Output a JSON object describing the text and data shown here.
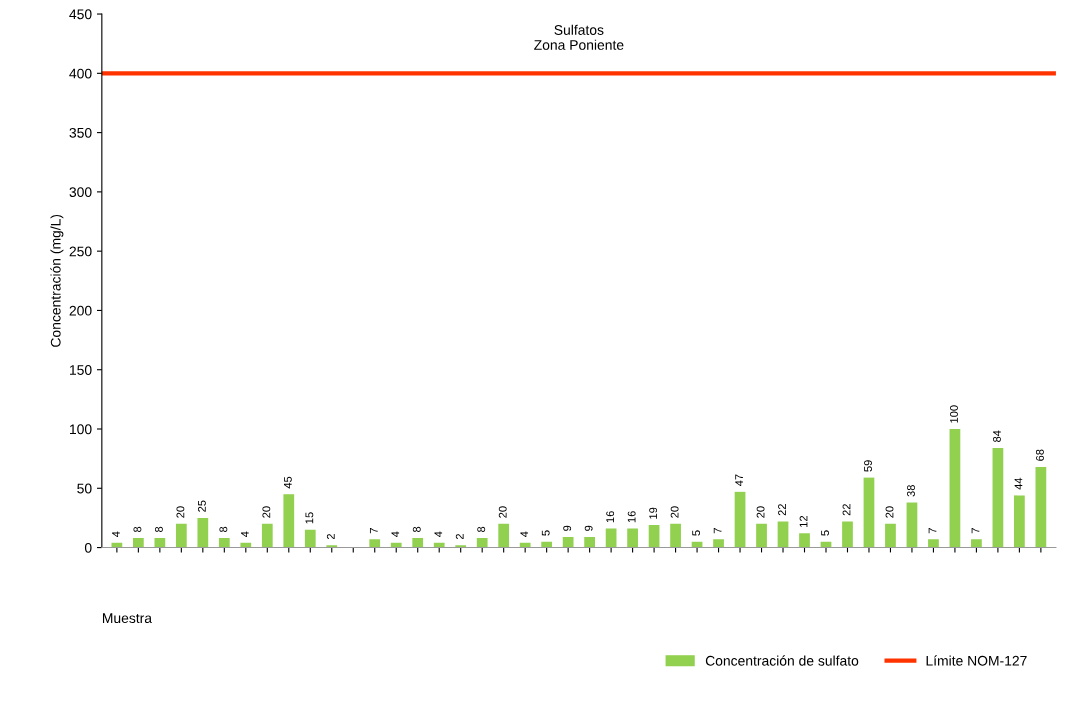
{
  "chart_data": {
    "type": "bar",
    "title": "Sulfatos",
    "subtitle": "Zona Poniente",
    "ylabel": "Concentración (mg/L)",
    "xlabel": "Muestra",
    "categories": [
      null,
      null,
      null,
      null,
      null,
      null,
      null,
      null,
      null,
      null,
      null,
      null,
      null,
      null,
      null,
      null,
      null,
      null,
      null,
      null,
      null,
      null,
      null,
      null,
      null,
      null,
      null,
      null,
      null,
      null,
      null,
      null,
      null,
      null,
      null,
      null,
      null,
      null,
      null,
      null,
      null,
      null,
      null,
      null
    ],
    "series": [
      {
        "name": "Concentración de sulfato",
        "color": "#92d050",
        "values": [
          4,
          8,
          8,
          20,
          25,
          8,
          4,
          20,
          45,
          15,
          2,
          null,
          7,
          4,
          8,
          4,
          2,
          8,
          20,
          4,
          5,
          9,
          9,
          16,
          16,
          19,
          20,
          5,
          7,
          47,
          20,
          22,
          12,
          5,
          22,
          59,
          20,
          38,
          7,
          100,
          7,
          84,
          44,
          68
        ]
      }
    ],
    "ref_lines": [
      {
        "axis": "y",
        "value": 400,
        "label": "Límite NOM-127",
        "color": "#ff3300",
        "line_style": "solid"
      }
    ],
    "ylim": [
      0,
      450
    ],
    "yticks": [
      0,
      50,
      100,
      150,
      200,
      250,
      300,
      350,
      400,
      450
    ],
    "data_labels": true,
    "grid": false,
    "legend": "bottom"
  }
}
